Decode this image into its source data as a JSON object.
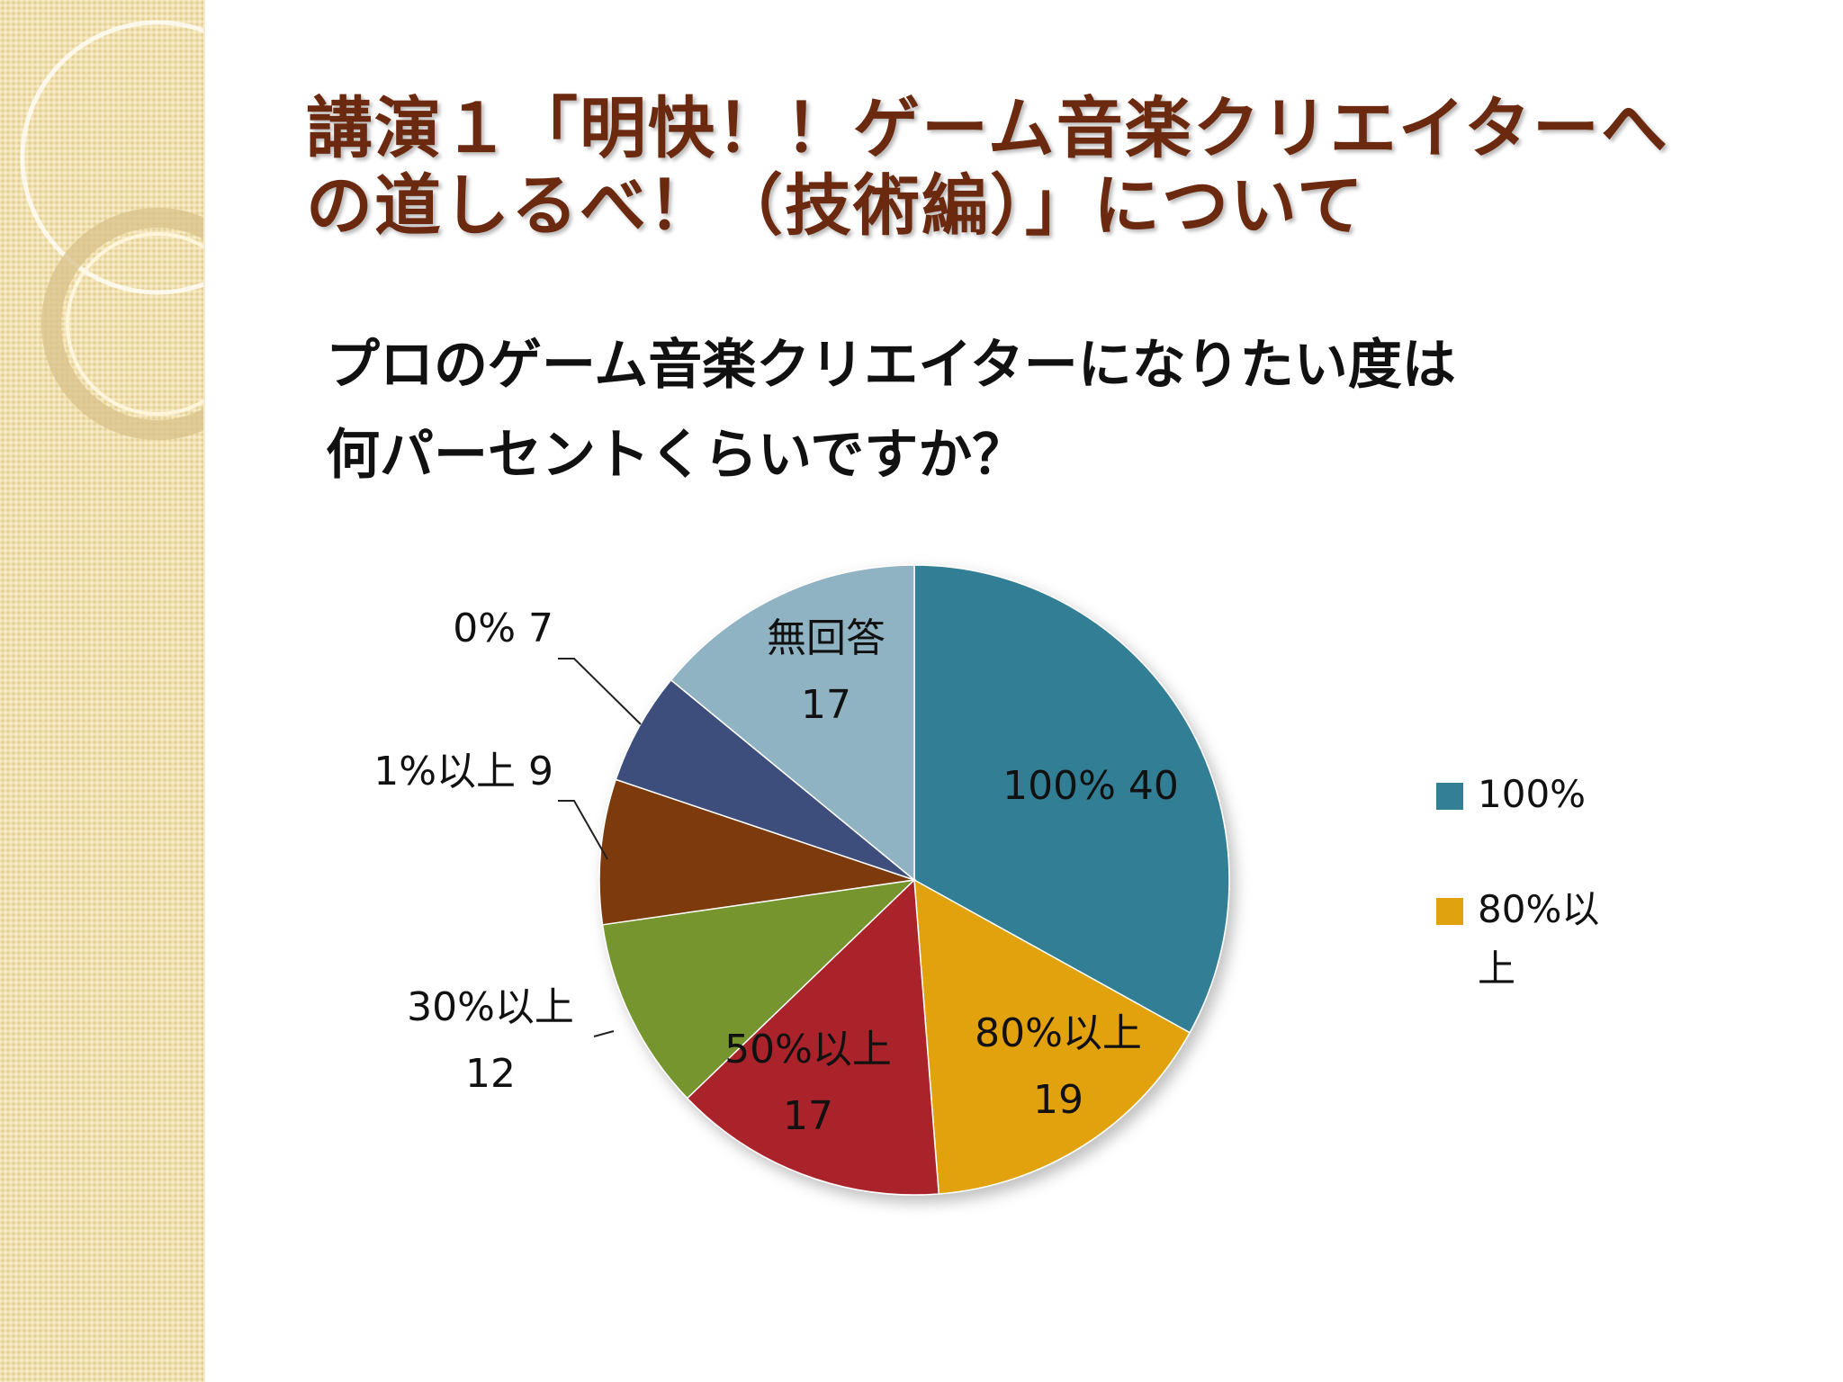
{
  "slide": {
    "title_lines": [
      "講演１「明快！！ゲーム音楽クリエイターへ",
      "の道しるべ！（技術編）」について"
    ],
    "question_lines": [
      "プロのゲーム音楽クリエイターになりたい度は",
      "何パーセントくらいですか？"
    ]
  },
  "chart_data": {
    "type": "pie",
    "title": "",
    "slices": [
      {
        "category": "100%",
        "value": 40,
        "color": "#337f95",
        "label_lines": [
          "100% 40"
        ]
      },
      {
        "category": "80%以上",
        "value": 19,
        "color": "#e1a210",
        "label_lines": [
          "80%以上",
          "19"
        ]
      },
      {
        "category": "50%以上",
        "value": 17,
        "color": "#aa2229",
        "label_lines": [
          "50%以上",
          "17"
        ]
      },
      {
        "category": "30%以上",
        "value": 12,
        "color": "#76952e",
        "label_lines": [
          "30%以上",
          "12"
        ]
      },
      {
        "category": "1%以上",
        "value": 9,
        "color": "#7d3a08",
        "label_lines": [
          "1%以上 9"
        ]
      },
      {
        "category": "0%",
        "value": 7,
        "color": "#3d4e7c",
        "label_lines": [
          "0% 7"
        ]
      },
      {
        "category": "無回答",
        "value": 17,
        "color": "#8fb3c2",
        "label_lines": [
          "無回答",
          "17"
        ]
      }
    ],
    "legend": {
      "position": "right",
      "entries": [
        {
          "lines": [
            "100%"
          ],
          "color": "#337f95"
        },
        {
          "lines": [
            "80%以",
            "上"
          ],
          "color": "#e1a210"
        }
      ]
    }
  }
}
